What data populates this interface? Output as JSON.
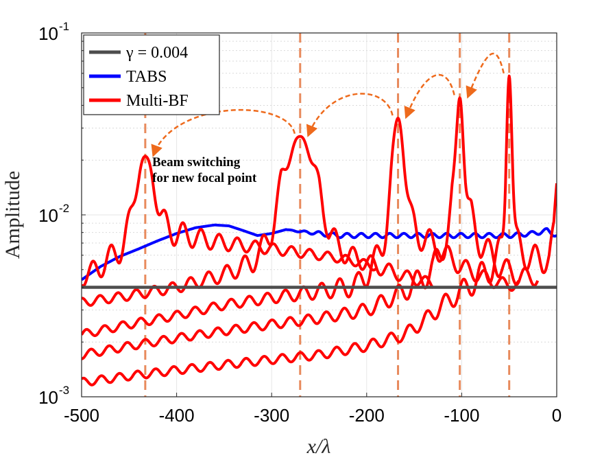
{
  "chart_data": {
    "type": "line",
    "title": "",
    "xlabel": "x/λ",
    "ylabel": "Amplitude",
    "xlim": [
      -500,
      0
    ],
    "ylim": [
      0.001,
      0.1
    ],
    "yscale": "log",
    "x_ticks": [
      -500,
      -400,
      -300,
      -200,
      -100,
      0
    ],
    "x_tick_labels": [
      "-500",
      "-400",
      "-300",
      "-200",
      "-100",
      "0"
    ],
    "y_ticks": [
      0.001,
      0.01,
      0.1
    ],
    "y_tick_base": [
      "10",
      "10",
      "10"
    ],
    "y_tick_exp": [
      "-3",
      "-2",
      "-1"
    ],
    "grid": true,
    "legend_position": "top-left",
    "legend": [
      {
        "label": "γ = 0.004",
        "color": "#4d4d4d"
      },
      {
        "label": "TABS",
        "color": "#0000ff"
      },
      {
        "label": "Multi-BF",
        "color": "#ff0000"
      }
    ],
    "threshold": {
      "name": "γ = 0.004",
      "value": 0.004
    },
    "focal_points_x": [
      -433,
      -270,
      -167,
      -102,
      -50
    ],
    "annotation": [
      "Beam switching",
      "for new focal point"
    ],
    "series": [
      {
        "name": "TABS",
        "color": "#0000ff",
        "x": [
          -500,
          -480,
          -460,
          -440,
          -420,
          -400,
          -380,
          -360,
          -345,
          -330,
          -315,
          -300,
          -285,
          -270,
          -250,
          -230,
          -200,
          -150,
          -100,
          -50,
          -25,
          -10,
          0
        ],
        "y": [
          0.0044,
          0.0052,
          0.0059,
          0.0065,
          0.0072,
          0.0079,
          0.0085,
          0.0088,
          0.0087,
          0.0082,
          0.0077,
          0.0079,
          0.0083,
          0.0081,
          0.0079,
          0.0077,
          0.0077,
          0.0077,
          0.0077,
          0.0077,
          0.0079,
          0.0082,
          0.0077
        ]
      },
      {
        "name": "Multi-BF focal -433",
        "color": "#ff0000",
        "peak_x": -433,
        "peak_y": 0.021,
        "peak_width": 9,
        "x": [
          -500,
          -480,
          -460,
          -445,
          -425,
          -410,
          -390,
          -370,
          -350,
          -330,
          -310,
          -290,
          -270,
          -250,
          -230,
          -210,
          -190
        ],
        "y": [
          0.0045,
          0.0052,
          0.0064,
          0.008,
          0.0085,
          0.0082,
          0.0077,
          0.0073,
          0.007,
          0.0068,
          0.0066,
          0.0064,
          0.0062,
          0.006,
          0.0058,
          0.0055,
          0.0052
        ]
      },
      {
        "name": "Multi-BF focal -270",
        "color": "#ff0000",
        "peak_x": -270,
        "peak_y": 0.027,
        "peak_width": 13,
        "x": [
          -500,
          -450,
          -400,
          -350,
          -320,
          -300,
          -290,
          -250,
          -240,
          -220,
          -200,
          -180,
          -160,
          -140,
          -130
        ],
        "y": [
          0.0033,
          0.0036,
          0.004,
          0.0047,
          0.0055,
          0.0075,
          0.012,
          0.011,
          0.0075,
          0.006,
          0.0055,
          0.005,
          0.0046,
          0.0043,
          0.0042
        ]
      },
      {
        "name": "Multi-BF focal -167",
        "color": "#ff0000",
        "peak_x": -167,
        "peak_y": 0.034,
        "peak_width": 7,
        "x": [
          -500,
          -450,
          -400,
          -350,
          -300,
          -250,
          -210,
          -185,
          -150,
          -140,
          -120,
          -100,
          -80,
          -60,
          -40
        ],
        "y": [
          0.0022,
          0.0025,
          0.0028,
          0.0032,
          0.0035,
          0.0038,
          0.0041,
          0.006,
          0.008,
          0.0075,
          0.0062,
          0.0052,
          0.0046,
          0.0042,
          0.0041
        ]
      },
      {
        "name": "Multi-BF focal -102",
        "color": "#ff0000",
        "peak_x": -102,
        "peak_y": 0.044,
        "peak_width": 4,
        "x": [
          -500,
          -450,
          -400,
          -350,
          -300,
          -250,
          -200,
          -160,
          -130,
          -115,
          -110,
          -90,
          -80,
          -60,
          -40,
          -20
        ],
        "y": [
          0.0017,
          0.0019,
          0.0021,
          0.0023,
          0.0025,
          0.0027,
          0.003,
          0.0038,
          0.005,
          0.008,
          0.01,
          0.0095,
          0.007,
          0.0052,
          0.0046,
          0.0045
        ]
      },
      {
        "name": "Multi-BF focal -50",
        "color": "#ff0000",
        "peak_x": -50,
        "peak_y": 0.058,
        "peak_width": 3,
        "x": [
          -500,
          -450,
          -400,
          -350,
          -300,
          -250,
          -200,
          -160,
          -140,
          -120,
          -100,
          -75,
          -60,
          -40,
          -25,
          -15,
          -8,
          -3,
          0
        ],
        "y": [
          0.0012,
          0.0013,
          0.0014,
          0.0015,
          0.0016,
          0.0017,
          0.0019,
          0.0022,
          0.0026,
          0.0032,
          0.0038,
          0.0048,
          0.006,
          0.0065,
          0.0058,
          0.0055,
          0.006,
          0.008,
          0.014
        ]
      }
    ]
  }
}
